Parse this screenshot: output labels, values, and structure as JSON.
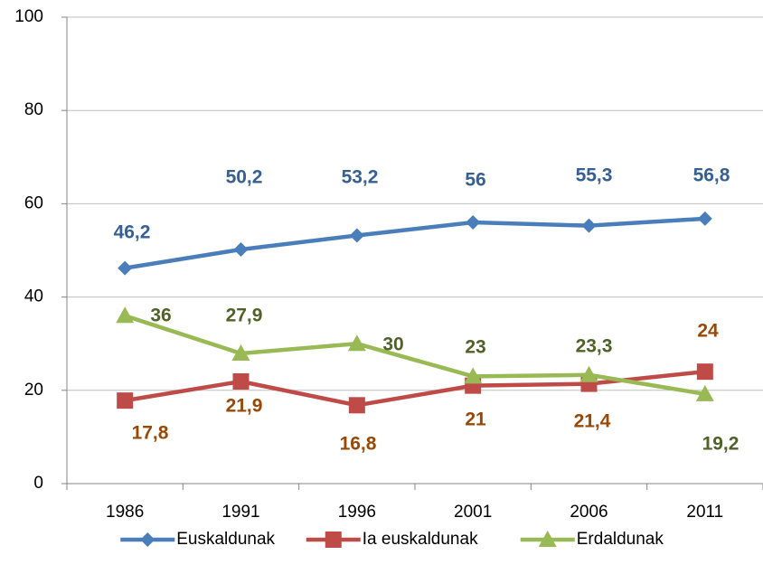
{
  "chart_data": {
    "type": "line",
    "categories": [
      "1986",
      "1991",
      "1996",
      "2001",
      "2006",
      "2011"
    ],
    "series": [
      {
        "name": "Euskaldunak",
        "color": "#4a7ebb",
        "label_color": "#376092",
        "marker": "diamond",
        "values": [
          46.2,
          50.2,
          53.2,
          56,
          55.3,
          56.8
        ],
        "value_labels": [
          "46,2",
          "50,2",
          "53,2",
          "56",
          "55,3",
          "56,8"
        ]
      },
      {
        "name": "Ia euskaldunak",
        "color": "#be4b48",
        "label_color": "#984807",
        "marker": "square",
        "values": [
          17.8,
          21.9,
          16.8,
          21,
          21.4,
          24
        ],
        "value_labels": [
          "17,8",
          "21,9",
          "16,8",
          "21",
          "21,4",
          "24"
        ]
      },
      {
        "name": "Erdaldunak",
        "color": "#98b954",
        "label_color": "#4f6228",
        "marker": "triangle",
        "values": [
          36,
          27.9,
          30,
          23,
          23.3,
          19.2
        ],
        "value_labels": [
          "36",
          "27,9",
          "30",
          "23",
          "23,3",
          "19,2"
        ]
      }
    ],
    "ylim": [
      0,
      100
    ],
    "yticks": [
      0,
      20,
      40,
      60,
      80,
      100
    ],
    "grid": true,
    "legend": "bottom"
  }
}
